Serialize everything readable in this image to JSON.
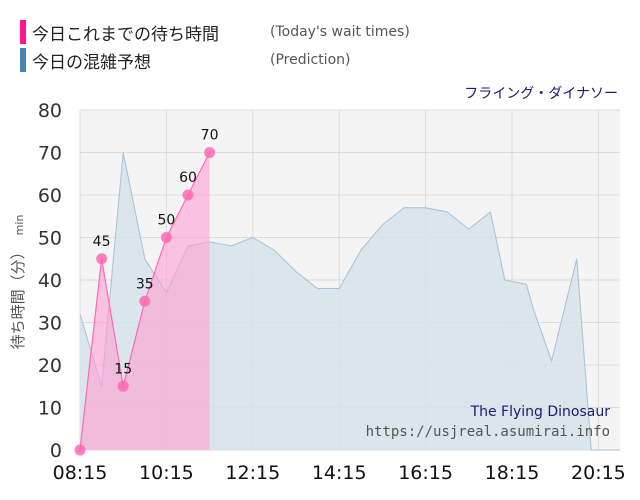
{
  "legend": {
    "today_label": "今日これまでの待ち時間",
    "today_sub": "(Today's wait times)",
    "prediction_label": "今日の混雑予想",
    "prediction_sub": "(Prediction)"
  },
  "attraction_name_ja": "フライング・ダイナソー",
  "watermark": {
    "line1": "The Flying Dinosaur",
    "line2": "https://usjreal.asumirai.info"
  },
  "colors": {
    "today": "#ff1493",
    "today_fill": "#ff9ed2",
    "prediction": "#4a86b5",
    "prediction_fill": "#d6e2ea"
  },
  "chart_data": {
    "type": "area",
    "title": "",
    "ylabel_ja": "待ち時間（分）",
    "ylabel_unit": "min",
    "ylim": [
      0,
      80
    ],
    "yticks": [
      0,
      10,
      20,
      30,
      40,
      50,
      60,
      70,
      80
    ],
    "xlim": [
      "08:15",
      "20:45"
    ],
    "xticks": [
      "08:15",
      "10:15",
      "12:15",
      "14:15",
      "16:15",
      "18:15",
      "20:15"
    ],
    "grid": true,
    "series": [
      {
        "name": "今日の混雑予想",
        "type": "area",
        "points": [
          [
            "08:15",
            32
          ],
          [
            "08:45",
            15
          ],
          [
            "09:15",
            70
          ],
          [
            "09:45",
            45
          ],
          [
            "10:15",
            37
          ],
          [
            "10:45",
            48
          ],
          [
            "11:15",
            49
          ],
          [
            "11:45",
            48
          ],
          [
            "12:15",
            50
          ],
          [
            "12:45",
            47
          ],
          [
            "13:15",
            42
          ],
          [
            "13:45",
            38
          ],
          [
            "14:15",
            38
          ],
          [
            "14:45",
            47
          ],
          [
            "15:15",
            53
          ],
          [
            "15:45",
            57
          ],
          [
            "16:15",
            57
          ],
          [
            "16:45",
            56
          ],
          [
            "17:15",
            52
          ],
          [
            "17:45",
            56
          ],
          [
            "18:05",
            40
          ],
          [
            "18:35",
            39
          ],
          [
            "18:45",
            33
          ],
          [
            "19:10",
            21
          ],
          [
            "19:45",
            45
          ],
          [
            "20:05",
            0
          ],
          [
            "20:45",
            0
          ]
        ]
      },
      {
        "name": "今日これまでの待ち時間",
        "type": "line-area",
        "points": [
          [
            "08:15",
            0
          ],
          [
            "08:45",
            45
          ],
          [
            "09:15",
            15
          ],
          [
            "09:45",
            35
          ],
          [
            "10:15",
            50
          ],
          [
            "10:45",
            60
          ],
          [
            "11:15",
            70
          ]
        ],
        "labels": [
          "",
          "45",
          "15",
          "35",
          "50",
          "60",
          "70"
        ]
      }
    ]
  }
}
